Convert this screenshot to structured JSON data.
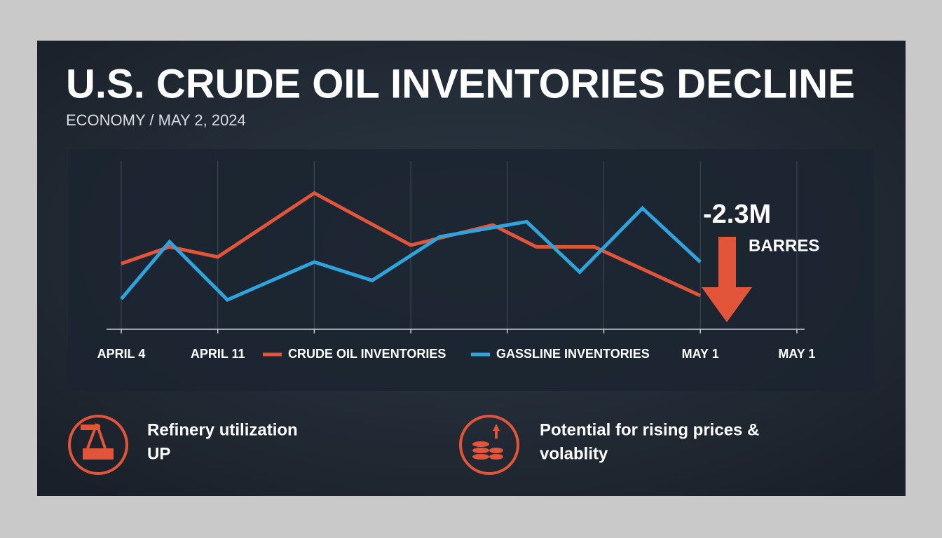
{
  "header": {
    "title": "U.S. CRUDE OIL INVENTORIES DECLINE",
    "subtitle": "ECONOMY / MAY 2, 2024"
  },
  "chart_data": {
    "type": "line",
    "categories": [
      "APRIL 4",
      "APRIL 11",
      null,
      null,
      null,
      null,
      "MAY 1",
      "MAY 1"
    ],
    "ylim": [
      0,
      100
    ],
    "grid": true,
    "legend": "bottom",
    "series": [
      {
        "name": "CRUDE OIL INVENTORIES",
        "color": "#e2553a",
        "x": [
          0,
          0.5,
          1,
          2,
          3,
          3.85,
          4.3,
          4.9,
          6
        ],
        "values": [
          39,
          49,
          43,
          81,
          50,
          62,
          49,
          49,
          20
        ]
      },
      {
        "name": "GASSLINE INVENTORIES",
        "color": "#2ea3dc",
        "x": [
          0,
          0.5,
          1.1,
          2,
          2.6,
          3.3,
          4.2,
          4.75,
          5.4,
          6
        ],
        "values": [
          18,
          52,
          17.5,
          40,
          29,
          55,
          64,
          34,
          72,
          40
        ]
      }
    ],
    "annotation": "-2.3M",
    "annotation_unit": "BARRES"
  },
  "highlights": [
    {
      "lines": [
        "Refinery utilization",
        "UP"
      ]
    },
    {
      "lines": [
        "Potential for rising prices &",
        "volablity"
      ]
    }
  ]
}
